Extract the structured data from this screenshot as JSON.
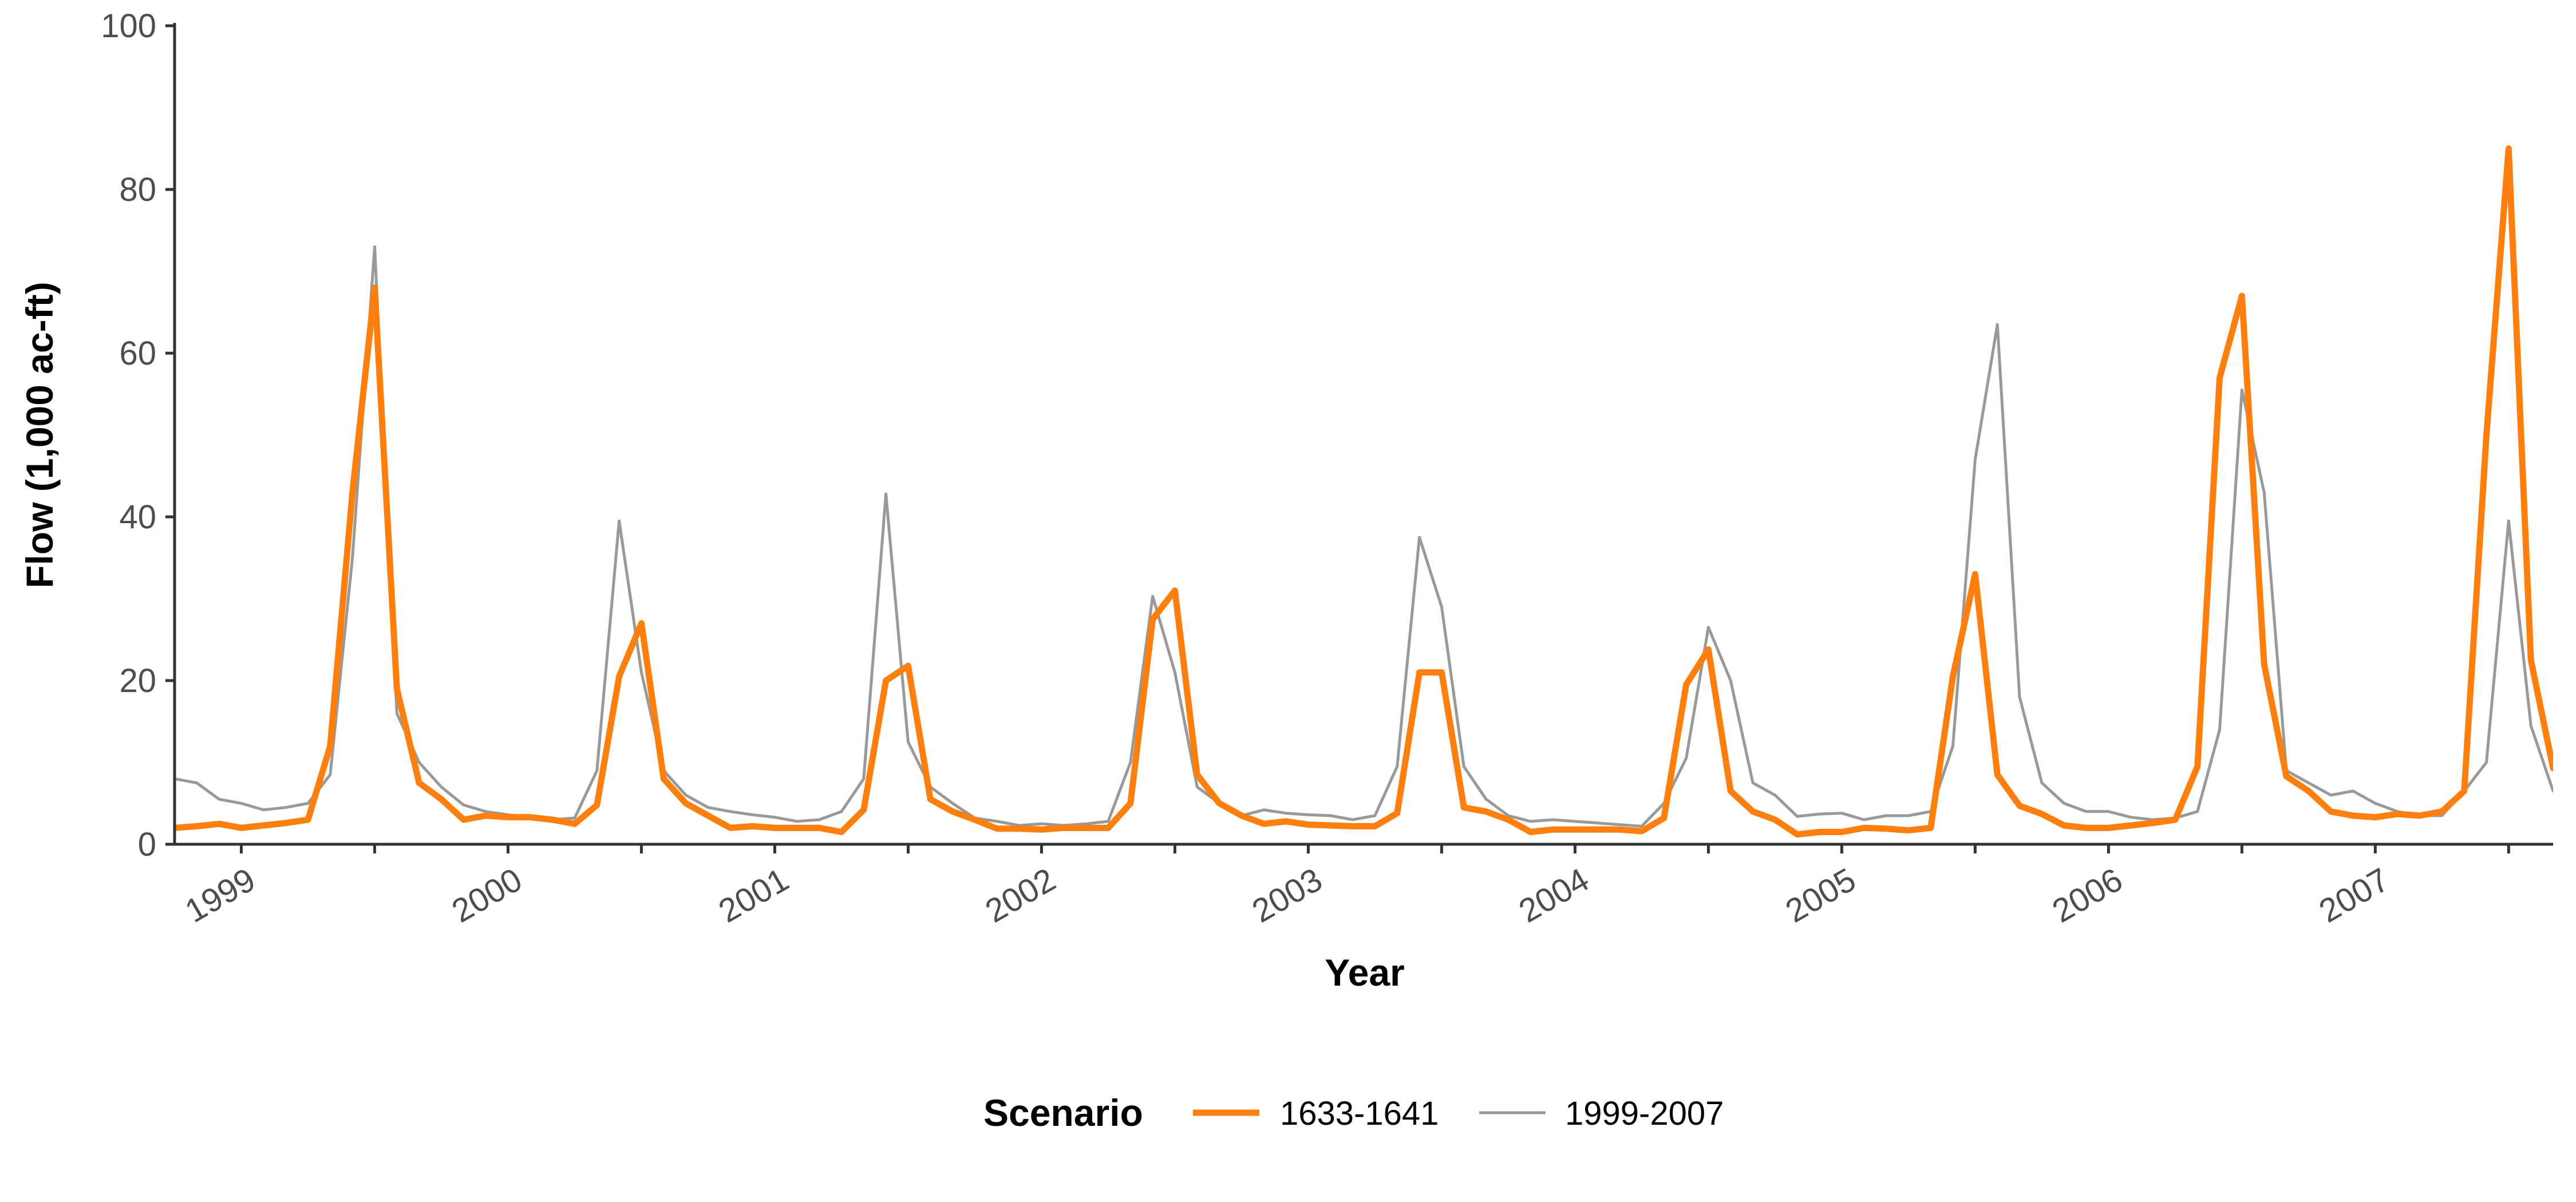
{
  "chart_data": {
    "type": "line",
    "xlabel": "Year",
    "ylabel": "Flow (1,000 ac-ft)",
    "xlim": [
      "1998-10",
      "2007-09"
    ],
    "ylim": [
      0,
      100
    ],
    "y_ticks": [
      0,
      20,
      40,
      60,
      80,
      100
    ],
    "x_ticks": [
      "1999",
      "2000",
      "2001",
      "2002",
      "2003",
      "2004",
      "2005",
      "2006",
      "2007"
    ],
    "grid": false,
    "legend": {
      "title": "Scenario",
      "placement": "bottom"
    },
    "x_start": "1998-10",
    "x_step": "monthly",
    "series": [
      {
        "name": "1633-1641",
        "color": "#ff7f0e",
        "values": [
          2.0,
          2.2,
          2.5,
          2.0,
          2.3,
          2.6,
          3.0,
          12.0,
          43.0,
          68.0,
          19.0,
          7.5,
          5.5,
          3.0,
          3.5,
          3.3,
          3.3,
          3.0,
          2.5,
          4.8,
          20.5,
          27.0,
          8.0,
          5.0,
          3.5,
          2.0,
          2.2,
          2.0,
          2.0,
          2.0,
          1.5,
          4.2,
          20.0,
          21.8,
          5.5,
          4.0,
          3.0,
          1.9,
          1.9,
          1.8,
          2.0,
          2.0,
          2.0,
          5.0,
          27.5,
          31.0,
          8.5,
          5.0,
          3.5,
          2.5,
          2.8,
          2.4,
          2.3,
          2.2,
          2.2,
          3.8,
          21.0,
          21.0,
          4.5,
          4.0,
          3.0,
          1.5,
          1.8,
          1.8,
          1.8,
          1.8,
          1.6,
          3.2,
          19.5,
          23.8,
          6.5,
          4.0,
          3.0,
          1.2,
          1.5,
          1.5,
          2.0,
          1.9,
          1.7,
          2.0,
          20.5,
          33.0,
          8.5,
          4.7,
          3.7,
          2.3,
          2.0,
          2.0,
          2.3,
          2.6,
          3.0,
          9.5,
          57.0,
          67.0,
          22.0,
          8.3,
          6.5,
          4.0,
          3.5,
          3.3,
          3.7,
          3.5,
          4.0,
          6.5,
          50.0,
          85.0,
          22.5,
          9.3,
          8.5
        ]
      },
      {
        "name": "1999-2007",
        "color": "#999999",
        "values": [
          8.0,
          7.5,
          5.5,
          5.0,
          4.2,
          4.5,
          5.0,
          8.5,
          35.0,
          73.0,
          16.0,
          10.0,
          7.0,
          4.8,
          4.0,
          3.6,
          3.3,
          3.0,
          3.2,
          9.0,
          39.5,
          21.0,
          9.0,
          6.0,
          4.5,
          4.0,
          3.6,
          3.3,
          2.8,
          3.0,
          4.0,
          8.0,
          42.8,
          12.5,
          7.0,
          5.0,
          3.2,
          2.8,
          2.3,
          2.5,
          2.3,
          2.5,
          2.8,
          10.0,
          30.3,
          21.0,
          7.0,
          5.0,
          3.5,
          4.2,
          3.8,
          3.6,
          3.5,
          3.0,
          3.5,
          9.5,
          37.5,
          29.0,
          9.5,
          5.5,
          3.5,
          2.8,
          3.0,
          2.8,
          2.6,
          2.4,
          2.2,
          5.0,
          10.5,
          26.5,
          20.0,
          7.5,
          6.0,
          3.4,
          3.7,
          3.8,
          3.0,
          3.5,
          3.5,
          4.0,
          12.0,
          47.0,
          63.5,
          18.0,
          7.5,
          5.0,
          4.0,
          4.0,
          3.3,
          3.0,
          3.2,
          4.0,
          14.0,
          55.5,
          43.0,
          9.0,
          7.5,
          6.0,
          6.5,
          5.0,
          4.0,
          3.5,
          3.5,
          6.5,
          10.0,
          39.5,
          14.5,
          6.5,
          4.5
        ]
      }
    ]
  }
}
